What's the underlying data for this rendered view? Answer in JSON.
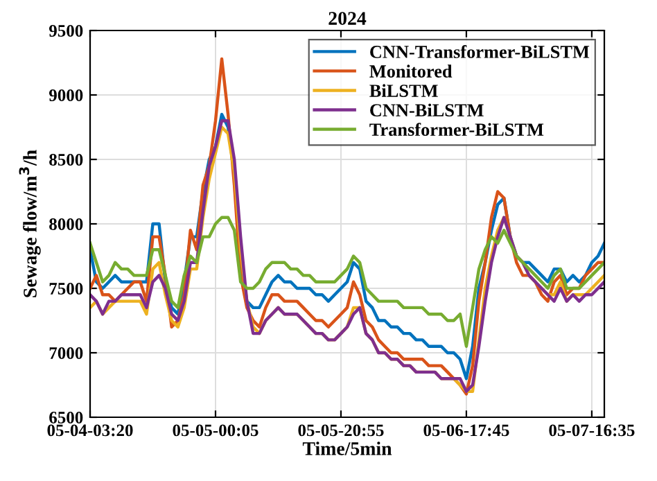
{
  "chart_data": {
    "type": "line",
    "title": "2024",
    "xlabel": "Time/5min",
    "ylabel": "Sewage flow/m$^{3}$/h",
    "categories": [
      "05-04-03:20",
      null,
      null,
      null,
      null,
      null,
      null,
      null,
      null,
      null,
      null,
      null,
      null,
      null,
      null,
      null,
      null,
      null,
      null,
      null,
      "05-05-00:05",
      null,
      null,
      null,
      null,
      null,
      null,
      null,
      null,
      null,
      null,
      null,
      null,
      null,
      null,
      null,
      null,
      null,
      null,
      null,
      "05-05-20:55",
      null,
      null,
      null,
      null,
      null,
      null,
      null,
      null,
      null,
      null,
      null,
      null,
      null,
      null,
      null,
      null,
      null,
      null,
      null,
      "05-06-17:45",
      null,
      null,
      null,
      null,
      null,
      null,
      null,
      null,
      null,
      null,
      null,
      null,
      null,
      null,
      null,
      null,
      null,
      null,
      null,
      "05-07-16:35",
      null,
      null
    ],
    "series": [
      {
        "name": "CNN-Transformer-BiLSTM",
        "color": "#0072bd",
        "values": [
          7800,
          7550,
          7500,
          7550,
          7600,
          7550,
          7550,
          7550,
          7550,
          7550,
          8000,
          8000,
          7550,
          7350,
          7300,
          7550,
          7900,
          7900,
          8250,
          8500,
          8600,
          8850,
          8750,
          8400,
          7700,
          7400,
          7350,
          7350,
          7450,
          7550,
          7600,
          7550,
          7550,
          7500,
          7500,
          7500,
          7450,
          7450,
          7400,
          7450,
          7500,
          7550,
          7700,
          7650,
          7400,
          7350,
          7250,
          7250,
          7200,
          7200,
          7150,
          7150,
          7100,
          7100,
          7050,
          7050,
          7050,
          7000,
          7000,
          6950,
          6800,
          7050,
          7500,
          7700,
          7950,
          8150,
          8200,
          7900,
          7750,
          7700,
          7700,
          7650,
          7600,
          7550,
          7650,
          7650,
          7550,
          7600,
          7550,
          7600,
          7700,
          7750,
          7850
        ]
      },
      {
        "name": "Monitored",
        "color": "#d95319",
        "values": [
          7500,
          7600,
          7450,
          7450,
          7400,
          7450,
          7500,
          7550,
          7550,
          7400,
          7900,
          7900,
          7600,
          7200,
          7250,
          7450,
          7950,
          7800,
          8300,
          8450,
          8800,
          9280,
          8850,
          8300,
          7600,
          7350,
          7250,
          7200,
          7350,
          7450,
          7450,
          7400,
          7400,
          7400,
          7350,
          7300,
          7250,
          7250,
          7200,
          7250,
          7300,
          7350,
          7550,
          7450,
          7250,
          7200,
          7100,
          7050,
          7000,
          7000,
          6950,
          6950,
          6950,
          6950,
          6900,
          6900,
          6900,
          6850,
          6800,
          6750,
          6680,
          6900,
          7400,
          7700,
          8050,
          8250,
          8200,
          7900,
          7700,
          7600,
          7600,
          7550,
          7450,
          7400,
          7550,
          7600,
          7450,
          7500,
          7500,
          7600,
          7650,
          7700,
          7700
        ]
      },
      {
        "name": "BiLSTM",
        "color": "#edb120",
        "values": [
          7350,
          7400,
          7300,
          7350,
          7400,
          7400,
          7400,
          7400,
          7400,
          7300,
          7650,
          7700,
          7450,
          7250,
          7200,
          7350,
          7650,
          7650,
          8050,
          8350,
          8550,
          8750,
          8700,
          8400,
          7800,
          7400,
          7200,
          7150,
          7250,
          7300,
          7350,
          7300,
          7300,
          7300,
          7250,
          7200,
          7150,
          7150,
          7100,
          7100,
          7150,
          7200,
          7350,
          7350,
          7150,
          7100,
          7000,
          7000,
          6950,
          6950,
          6900,
          6900,
          6850,
          6850,
          6850,
          6850,
          6800,
          6800,
          6800,
          6750,
          6700,
          6700,
          7100,
          7500,
          7750,
          7950,
          8050,
          7900,
          7750,
          7700,
          7600,
          7550,
          7500,
          7450,
          7450,
          7550,
          7400,
          7450,
          7450,
          7450,
          7500,
          7550,
          7600
        ]
      },
      {
        "name": "CNN-BiLSTM",
        "color": "#7e2f8e",
        "values": [
          7450,
          7400,
          7300,
          7400,
          7400,
          7450,
          7450,
          7450,
          7450,
          7350,
          7550,
          7600,
          7500,
          7300,
          7250,
          7400,
          7700,
          7700,
          8100,
          8450,
          8600,
          8800,
          8800,
          8500,
          7900,
          7400,
          7150,
          7150,
          7250,
          7300,
          7350,
          7300,
          7300,
          7300,
          7250,
          7200,
          7150,
          7150,
          7100,
          7100,
          7150,
          7200,
          7300,
          7350,
          7150,
          7100,
          7000,
          7000,
          6950,
          6950,
          6900,
          6900,
          6850,
          6850,
          6850,
          6850,
          6800,
          6800,
          6800,
          6800,
          6700,
          6750,
          7050,
          7400,
          7700,
          7900,
          8050,
          7900,
          7750,
          7700,
          7600,
          7550,
          7500,
          7450,
          7400,
          7500,
          7400,
          7450,
          7400,
          7450,
          7450,
          7500,
          7550
        ]
      },
      {
        "name": "Transformer-BiLSTM",
        "color": "#77ac30",
        "values": [
          7850,
          7700,
          7550,
          7600,
          7700,
          7650,
          7650,
          7600,
          7600,
          7600,
          7800,
          7800,
          7600,
          7400,
          7350,
          7600,
          7750,
          7700,
          7900,
          7900,
          8000,
          8050,
          8050,
          7950,
          7550,
          7500,
          7500,
          7550,
          7650,
          7700,
          7700,
          7700,
          7650,
          7650,
          7600,
          7600,
          7550,
          7550,
          7550,
          7550,
          7600,
          7650,
          7750,
          7700,
          7500,
          7450,
          7400,
          7400,
          7400,
          7400,
          7350,
          7350,
          7350,
          7350,
          7300,
          7300,
          7300,
          7250,
          7250,
          7300,
          7050,
          7350,
          7650,
          7800,
          7900,
          7850,
          7950,
          7850,
          7750,
          7700,
          7650,
          7600,
          7550,
          7500,
          7600,
          7650,
          7500,
          7500,
          7500,
          7550,
          7600,
          7650,
          7700
        ]
      }
    ],
    "ylim": [
      6500,
      9500
    ],
    "yticks": [
      6500,
      7000,
      7500,
      8000,
      8500,
      9000,
      9500
    ],
    "grid": true,
    "legend": "top right",
    "line_style": "solid",
    "marker": "none"
  }
}
